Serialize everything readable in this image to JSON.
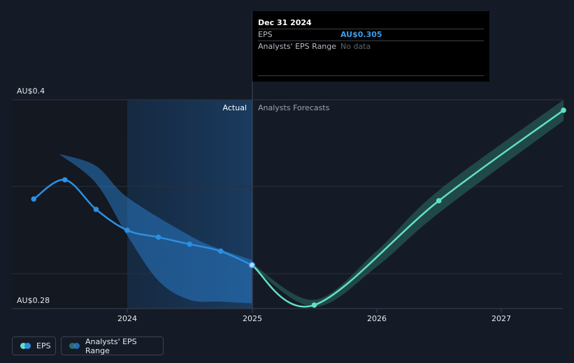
{
  "chart_data": {
    "type": "line",
    "title": "EPS",
    "y_unit": "AU$",
    "ylim": [
      0.28,
      0.4
    ],
    "y_tick_labels": [
      "AU$0.4",
      "AU$0.28"
    ],
    "x_tick_labels": [
      "2024",
      "2025",
      "2026",
      "2027"
    ],
    "section_labels": {
      "actual": "Actual",
      "forecast": "Analysts Forecasts"
    },
    "series": [
      {
        "name": "EPS (actual)",
        "color": "#2d8fe0",
        "points": [
          {
            "t": 2023.25,
            "v": 0.343
          },
          {
            "t": 2023.5,
            "v": 0.354
          },
          {
            "t": 2023.75,
            "v": 0.337
          },
          {
            "t": 2024.0,
            "v": 0.325
          },
          {
            "t": 2024.25,
            "v": 0.321
          },
          {
            "t": 2024.5,
            "v": 0.317
          },
          {
            "t": 2024.75,
            "v": 0.313
          },
          {
            "t": 2025.0,
            "v": 0.305
          }
        ]
      },
      {
        "name": "EPS (analyst forecast)",
        "color": "#62e0c4",
        "points": [
          {
            "t": 2025.0,
            "v": 0.305
          },
          {
            "t": 2025.5,
            "v": 0.282
          },
          {
            "t": 2026.5,
            "v": 0.342
          },
          {
            "t": 2027.5,
            "v": 0.394
          }
        ]
      }
    ],
    "ranges": [
      {
        "name": "Analysts' EPS Range (historical)",
        "color": "#2a7fd0",
        "upper": [
          [
            2023.45,
            0.369
          ],
          [
            2023.75,
            0.362
          ],
          [
            2024.0,
            0.344
          ],
          [
            2024.5,
            0.322
          ],
          [
            2024.75,
            0.314
          ],
          [
            2025.0,
            0.308
          ]
        ],
        "lower": [
          [
            2023.45,
            0.369
          ],
          [
            2023.75,
            0.352
          ],
          [
            2024.0,
            0.322
          ],
          [
            2024.25,
            0.296
          ],
          [
            2024.5,
            0.285
          ],
          [
            2024.75,
            0.284
          ],
          [
            2025.0,
            0.283
          ]
        ]
      },
      {
        "name": "Analysts' EPS Range (forecast)",
        "color": "#2a6e66",
        "upper": [
          [
            2025.0,
            0.306
          ],
          [
            2025.5,
            0.285
          ],
          [
            2026.0,
            0.313
          ],
          [
            2026.5,
            0.348
          ],
          [
            2027.5,
            0.4
          ]
        ],
        "lower": [
          [
            2025.0,
            0.304
          ],
          [
            2025.5,
            0.281
          ],
          [
            2026.0,
            0.304
          ],
          [
            2026.5,
            0.335
          ],
          [
            2027.5,
            0.388
          ]
        ]
      }
    ]
  },
  "tooltip": {
    "date": "Dec 31 2024",
    "eps_label": "EPS",
    "eps_value": "AU$0.305",
    "range_label": "Analysts' EPS Range",
    "range_value": "No data"
  },
  "legend": {
    "eps_label": "EPS",
    "range_label": "Analysts' EPS Range",
    "eps_colors": [
      "#2d8fe0",
      "#62e0c4"
    ],
    "range_colors": [
      "#2a7fd0",
      "#2a6e66"
    ]
  }
}
